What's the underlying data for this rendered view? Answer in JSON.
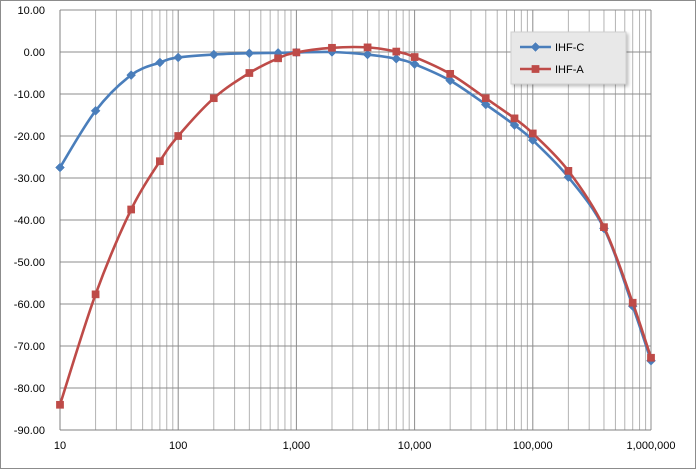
{
  "chart_data": {
    "type": "line",
    "title": "",
    "xlabel": "",
    "ylabel": "",
    "xscale": "log",
    "xlim": [
      10,
      1000000
    ],
    "ylim": [
      -90,
      10
    ],
    "grid": true,
    "legend_position": "top-right",
    "x_tick_labels": [
      "10",
      "100",
      "1,000",
      "10,000",
      "100,000",
      "1,000,000"
    ],
    "x_tick_values": [
      10,
      100,
      1000,
      10000,
      100000,
      1000000
    ],
    "y_tick_labels": [
      "10.00",
      "0.00",
      "-10.00",
      "-20.00",
      "-30.00",
      "-40.00",
      "-50.00",
      "-60.00",
      "-70.00",
      "-80.00",
      "-90.00"
    ],
    "y_tick_values": [
      10,
      0,
      -10,
      -20,
      -30,
      -40,
      -50,
      -60,
      -70,
      -80,
      -90
    ],
    "series": [
      {
        "name": "IHF-C",
        "color": "#4a7ebb",
        "marker": "diamond",
        "x": [
          10,
          20,
          40,
          70,
          100,
          200,
          400,
          700,
          1000,
          2000,
          4000,
          7000,
          10000,
          20000,
          40000,
          70000,
          100000,
          200000,
          400000,
          700000,
          1000000
        ],
        "y": [
          -27.5,
          -14.0,
          -5.5,
          -2.5,
          -1.3,
          -0.6,
          -0.3,
          -0.2,
          -0.1,
          0.0,
          -0.6,
          -1.6,
          -2.9,
          -6.8,
          -12.5,
          -17.4,
          -21.0,
          -29.8,
          -42.0,
          -60.5,
          -73.5
        ]
      },
      {
        "name": "IHF-A",
        "color": "#be4b48",
        "marker": "square",
        "x": [
          10,
          20,
          40,
          70,
          100,
          200,
          400,
          700,
          1000,
          2000,
          4000,
          7000,
          10000,
          20000,
          40000,
          70000,
          100000,
          200000,
          400000,
          700000,
          1000000
        ],
        "y": [
          -84.0,
          -57.7,
          -37.5,
          -26.0,
          -20.0,
          -11.0,
          -5.0,
          -1.5,
          -0.1,
          1.0,
          1.1,
          0.1,
          -1.2,
          -5.2,
          -11.0,
          -15.8,
          -19.4,
          -28.3,
          -41.7,
          -59.7,
          -72.8
        ]
      }
    ]
  }
}
